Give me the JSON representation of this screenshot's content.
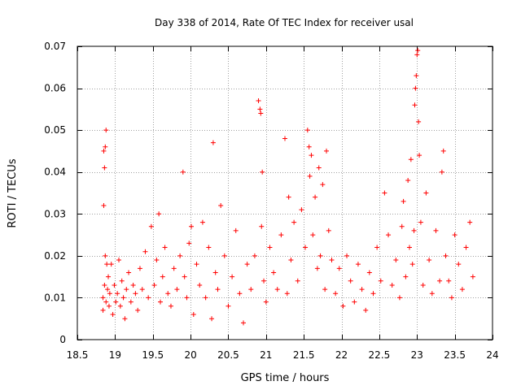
{
  "chart_data": {
    "type": "scatter",
    "title": "Day 338 of 2014, Rate Of TEC Index for receiver usal",
    "xlabel": "GPS time / hours",
    "ylabel": "ROTI / TECUs",
    "xlim": [
      18.5,
      24
    ],
    "ylim": [
      0,
      0.07
    ],
    "xticks": [
      18.5,
      19,
      19.5,
      20,
      20.5,
      21,
      21.5,
      22,
      22.5,
      23,
      23.5,
      24
    ],
    "xtick_labels": [
      "18.5",
      "19",
      "19.5",
      "20",
      "20.5",
      "21",
      "21.5",
      "22",
      "22.5",
      "23",
      "23.5",
      "24"
    ],
    "yticks": [
      0,
      0.01,
      0.02,
      0.03,
      0.04,
      0.05,
      0.06,
      0.07
    ],
    "ytick_labels": [
      "0",
      "0.01",
      "0.02",
      "0.03",
      "0.04",
      "0.05",
      "0.06",
      "0.07"
    ],
    "grid": true,
    "marker": "+",
    "color": "#ff0000",
    "series": [
      {
        "name": "ROTI",
        "x": [
          18.84,
          18.84,
          18.85,
          18.85,
          18.86,
          18.86,
          18.87,
          18.87,
          18.88,
          18.88,
          18.89,
          18.9,
          18.91,
          18.92,
          18.93,
          18.95,
          18.97,
          18.99,
          19.01,
          19.03,
          19.05,
          19.07,
          19.09,
          19.11,
          19.13,
          19.15,
          19.18,
          19.21,
          19.24,
          19.27,
          19.3,
          19.33,
          19.36,
          19.4,
          19.44,
          19.48,
          19.52,
          19.55,
          19.58,
          19.6,
          19.63,
          19.66,
          19.7,
          19.74,
          19.78,
          19.82,
          19.86,
          19.9,
          19.92,
          19.95,
          19.98,
          20.01,
          20.04,
          20.08,
          20.12,
          20.16,
          20.2,
          20.24,
          20.28,
          20.3,
          20.33,
          20.36,
          20.4,
          20.45,
          20.5,
          20.55,
          20.6,
          20.65,
          20.7,
          20.75,
          20.8,
          20.85,
          20.9,
          20.92,
          20.93,
          20.94,
          20.95,
          20.97,
          21.0,
          21.05,
          21.1,
          21.15,
          21.2,
          21.25,
          21.28,
          21.3,
          21.33,
          21.37,
          21.42,
          21.47,
          21.52,
          21.55,
          21.57,
          21.58,
          21.6,
          21.62,
          21.65,
          21.68,
          21.7,
          21.72,
          21.75,
          21.78,
          21.8,
          21.83,
          21.87,
          21.92,
          21.97,
          22.02,
          22.07,
          22.12,
          22.17,
          22.22,
          22.27,
          22.32,
          22.37,
          22.42,
          22.47,
          22.52,
          22.57,
          22.62,
          22.67,
          22.72,
          22.77,
          22.8,
          22.82,
          22.85,
          22.88,
          22.9,
          22.92,
          22.94,
          22.96,
          22.97,
          22.98,
          22.99,
          23.0,
          23.01,
          23.02,
          23.03,
          23.05,
          23.08,
          23.12,
          23.16,
          23.2,
          23.25,
          23.3,
          23.33,
          23.35,
          23.38,
          23.42,
          23.46,
          23.5,
          23.55,
          23.6,
          23.65,
          23.7,
          23.74
        ],
        "y": [
          0.007,
          0.01,
          0.045,
          0.032,
          0.041,
          0.013,
          0.046,
          0.02,
          0.05,
          0.009,
          0.018,
          0.012,
          0.015,
          0.008,
          0.011,
          0.018,
          0.006,
          0.013,
          0.009,
          0.011,
          0.019,
          0.008,
          0.014,
          0.01,
          0.005,
          0.012,
          0.016,
          0.009,
          0.013,
          0.011,
          0.007,
          0.017,
          0.012,
          0.021,
          0.01,
          0.027,
          0.013,
          0.019,
          0.03,
          0.009,
          0.015,
          0.022,
          0.011,
          0.008,
          0.017,
          0.012,
          0.02,
          0.04,
          0.015,
          0.01,
          0.023,
          0.027,
          0.006,
          0.018,
          0.013,
          0.028,
          0.01,
          0.022,
          0.005,
          0.047,
          0.016,
          0.012,
          0.032,
          0.02,
          0.008,
          0.015,
          0.026,
          0.011,
          0.004,
          0.018,
          0.012,
          0.02,
          0.057,
          0.055,
          0.054,
          0.027,
          0.04,
          0.014,
          0.009,
          0.022,
          0.016,
          0.012,
          0.025,
          0.048,
          0.011,
          0.034,
          0.019,
          0.028,
          0.014,
          0.031,
          0.022,
          0.05,
          0.046,
          0.039,
          0.044,
          0.025,
          0.034,
          0.017,
          0.041,
          0.02,
          0.037,
          0.012,
          0.045,
          0.026,
          0.019,
          0.011,
          0.017,
          0.008,
          0.02,
          0.014,
          0.009,
          0.018,
          0.012,
          0.007,
          0.016,
          0.011,
          0.022,
          0.014,
          0.035,
          0.025,
          0.013,
          0.019,
          0.01,
          0.027,
          0.033,
          0.015,
          0.038,
          0.022,
          0.043,
          0.018,
          0.026,
          0.056,
          0.06,
          0.063,
          0.068,
          0.069,
          0.052,
          0.044,
          0.028,
          0.013,
          0.035,
          0.019,
          0.011,
          0.026,
          0.014,
          0.04,
          0.045,
          0.02,
          0.014,
          0.01,
          0.025,
          0.018,
          0.012,
          0.022,
          0.028,
          0.015
        ]
      }
    ]
  }
}
